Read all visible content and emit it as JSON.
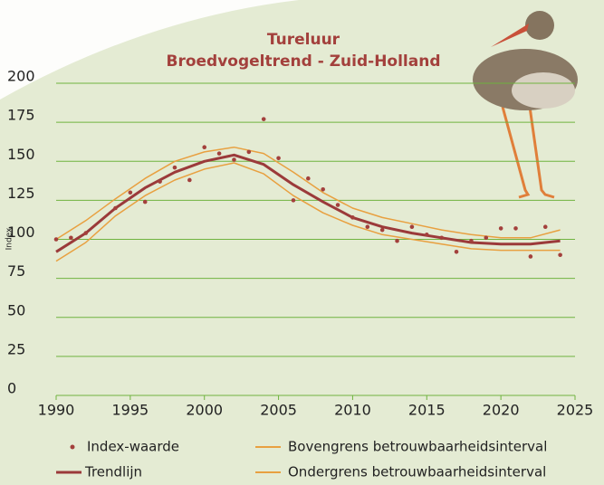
{
  "chart_data": {
    "type": "line",
    "title": "Tureluur",
    "subtitle": "Broedvogeltrend - Zuid-Holland",
    "y_label": "Index",
    "xlim": [
      1990,
      2025
    ],
    "xticks": [
      1990,
      1995,
      2000,
      2005,
      2010,
      2015,
      2020,
      2025
    ],
    "ylim": [
      0,
      200
    ],
    "yticks": [
      0,
      25,
      50,
      75,
      100,
      125,
      150,
      175,
      200
    ],
    "grid": true,
    "series": [
      {
        "name": "Index-waarde",
        "kind": "scatter",
        "color": "#a3403c",
        "x": [
          1990,
          1991,
          1992,
          1994,
          1995,
          1996,
          1997,
          1998,
          1999,
          2000,
          2001,
          2002,
          2003,
          2004,
          2005,
          2006,
          2007,
          2008,
          2009,
          2010,
          2011,
          2012,
          2013,
          2014,
          2015,
          2016,
          2017,
          2018,
          2019,
          2020,
          2021,
          2022,
          2023,
          2024
        ],
        "values": [
          100,
          101,
          104,
          120,
          130,
          124,
          137,
          146,
          138,
          159,
          155,
          151,
          156,
          177,
          152,
          125,
          139,
          132,
          122,
          114,
          108,
          106,
          99,
          108,
          103,
          101,
          92,
          99,
          101,
          107,
          107,
          89,
          108,
          90
        ]
      },
      {
        "name": "Trendlijn",
        "kind": "line",
        "color": "#9b3a3a",
        "x": [
          1990,
          1992,
          1994,
          1996,
          1998,
          2000,
          2002,
          2004,
          2006,
          2008,
          2010,
          2012,
          2014,
          2016,
          2018,
          2020,
          2022,
          2024
        ],
        "values": [
          92,
          104,
          120,
          133,
          143,
          150,
          154,
          148,
          135,
          124,
          114,
          108,
          104,
          101,
          98,
          97,
          97,
          99
        ]
      },
      {
        "name": "Bovengrens betrouwbaarheidsinterval",
        "kind": "line",
        "color": "#e8a040",
        "x": [
          1990,
          1992,
          1994,
          1996,
          1998,
          2000,
          2002,
          2004,
          2006,
          2008,
          2010,
          2012,
          2014,
          2016,
          2018,
          2020,
          2022,
          2024
        ],
        "values": [
          100,
          112,
          126,
          139,
          150,
          156,
          159,
          155,
          143,
          130,
          120,
          114,
          110,
          106,
          103,
          101,
          101,
          106
        ]
      },
      {
        "name": "Ondergrens betrouwbaarheidsinterval",
        "kind": "line",
        "color": "#e8a040",
        "x": [
          1990,
          1992,
          1994,
          1996,
          1998,
          2000,
          2002,
          2004,
          2006,
          2008,
          2010,
          2012,
          2014,
          2016,
          2018,
          2020,
          2022,
          2024
        ],
        "values": [
          86,
          98,
          115,
          128,
          138,
          145,
          149,
          142,
          128,
          117,
          109,
          103,
          100,
          97,
          94,
          93,
          93,
          93
        ]
      }
    ]
  }
}
